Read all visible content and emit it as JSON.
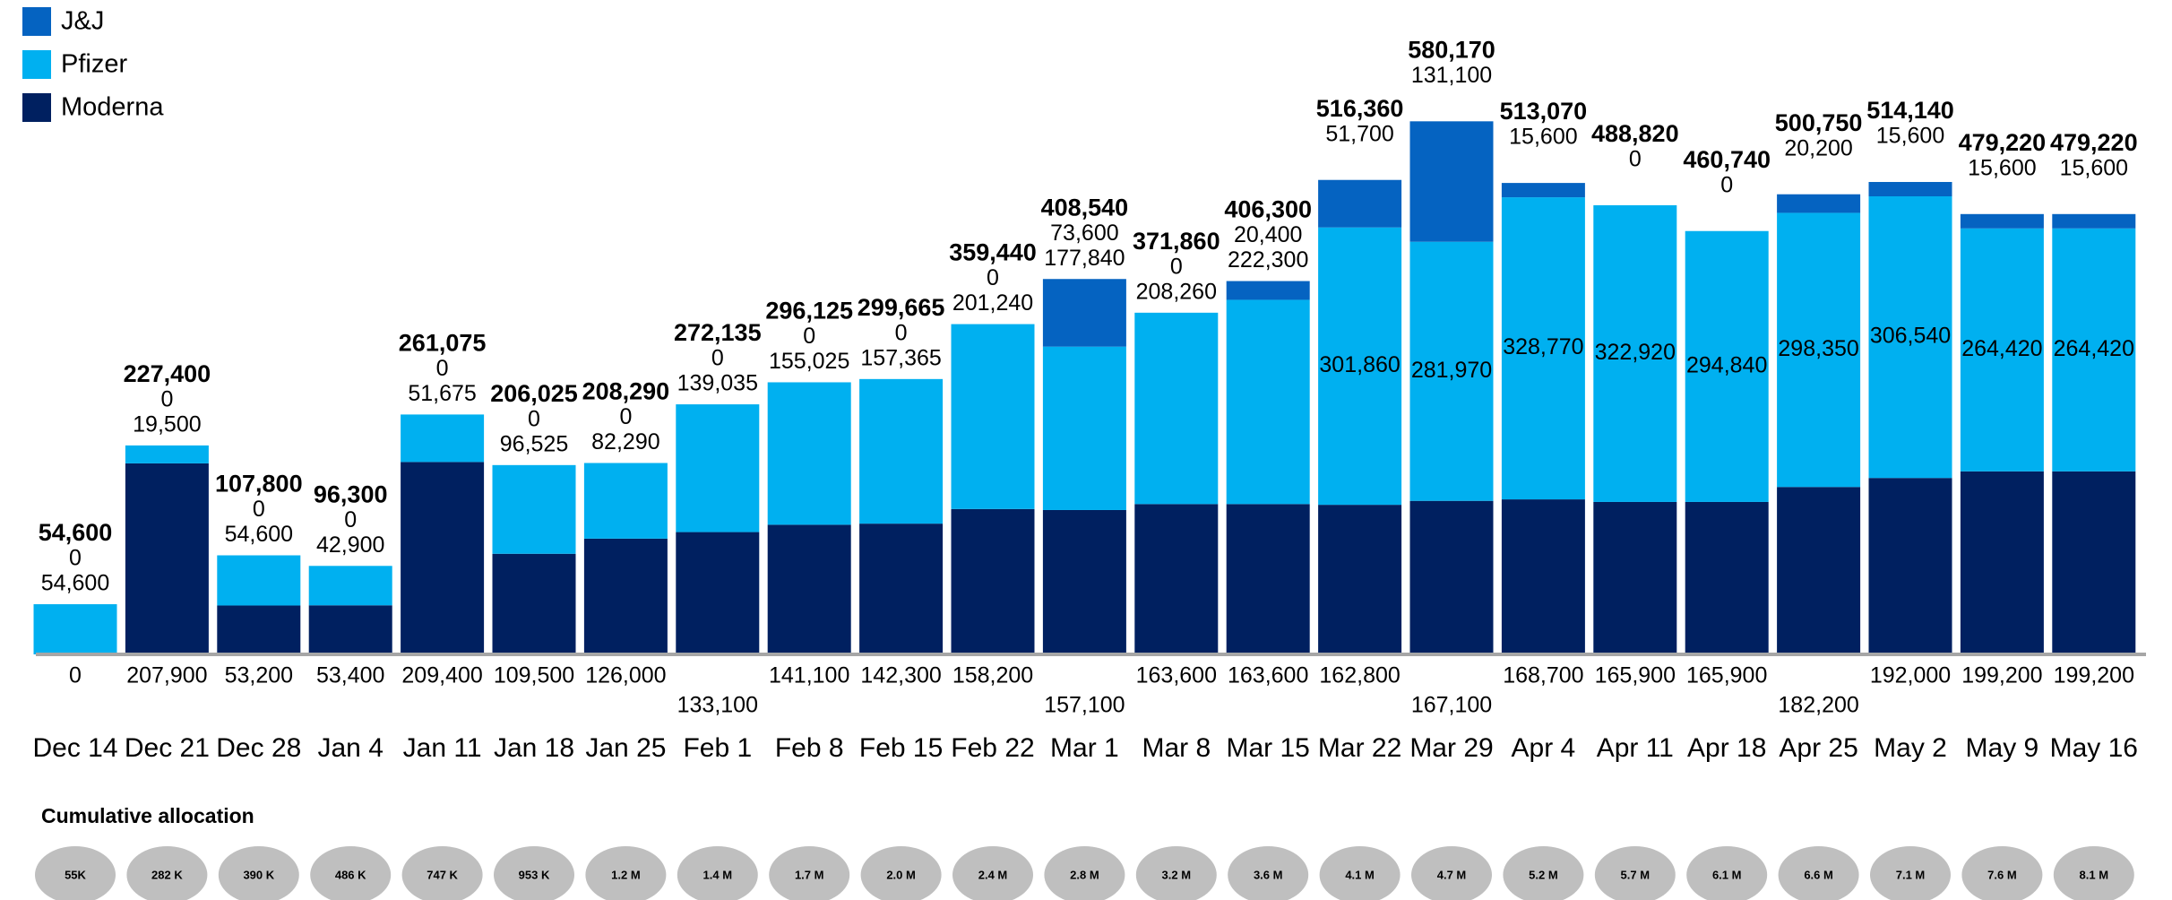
{
  "chart_data": {
    "type": "stacked_bar",
    "categories": [
      "Dec 14",
      "Dec 21",
      "Dec 28",
      "Jan 4",
      "Jan 11",
      "Jan 18",
      "Jan 25",
      "Feb 1",
      "Feb 8",
      "Feb 15",
      "Feb 22",
      "Mar 1",
      "Mar 8",
      "Mar 15",
      "Mar 22",
      "Mar 29",
      "Apr 4",
      "Apr 11",
      "Apr 18",
      "Apr 25",
      "May 2",
      "May 9",
      "May 16"
    ],
    "series": [
      {
        "name": "Moderna",
        "color": "#002060",
        "values": [
          0,
          207900,
          53200,
          53400,
          209400,
          109500,
          126000,
          133100,
          141100,
          142300,
          158200,
          157100,
          163600,
          163600,
          162800,
          167100,
          168700,
          165900,
          165900,
          182200,
          192000,
          199200,
          199200
        ],
        "value_labels": [
          "0",
          "207,900",
          "53,200",
          "53,400",
          "209,400",
          "109,500",
          "126,000",
          "133,100",
          "141,100",
          "142,300",
          "158,200",
          "157,100",
          "163,600",
          "163,600",
          "162,800",
          "167,100",
          "168,700",
          "165,900",
          "165,900",
          "182,200",
          "192,000",
          "199,200",
          "199,200"
        ]
      },
      {
        "name": "Pfizer",
        "color": "#00b0f0",
        "values": [
          54600,
          19500,
          54600,
          42900,
          51675,
          96525,
          82290,
          139035,
          155025,
          157365,
          201240,
          177840,
          208260,
          222300,
          301860,
          281970,
          328770,
          322920,
          294840,
          298350,
          306540,
          264420,
          264420
        ],
        "value_labels": [
          "54,600",
          "19,500",
          "54,600",
          "42,900",
          "51,675",
          "96,525",
          "82,290",
          "139,035",
          "155,025",
          "157,365",
          "201,240",
          "177,840",
          "208,260",
          "222,300",
          "301,860",
          "281,970",
          "328,770",
          "322,920",
          "294,840",
          "298,350",
          "306,540",
          "264,420",
          "264,420"
        ]
      },
      {
        "name": "J&J",
        "color": "#0563c1",
        "values": [
          0,
          0,
          0,
          0,
          0,
          0,
          0,
          0,
          0,
          0,
          0,
          73600,
          0,
          20400,
          51700,
          131100,
          15600,
          0,
          0,
          20200,
          15600,
          15600,
          15600
        ],
        "value_labels": [
          "0",
          "0",
          "0",
          "0",
          "0",
          "0",
          "0",
          "0",
          "0",
          "0",
          "0",
          "73,600",
          "0",
          "20,400",
          "51,700",
          "131,100",
          "15,600",
          "0",
          "0",
          "20,200",
          "15,600",
          "15,600",
          "15,600"
        ]
      }
    ],
    "totals": {
      "values": [
        54600,
        227400,
        107800,
        96300,
        261075,
        206025,
        208290,
        272135,
        296125,
        299665,
        359440,
        408540,
        371860,
        406300,
        516360,
        580170,
        513070,
        488820,
        460740,
        500750,
        514140,
        479220,
        479220
      ],
      "value_labels": [
        "54,600",
        "227,400",
        "107,800",
        "96,300",
        "261,075",
        "206,025",
        "208,290",
        "272,135",
        "296,125",
        "299,665",
        "359,440",
        "408,540",
        "371,860",
        "406,300",
        "516,360",
        "580,170",
        "513,070",
        "488,820",
        "460,740",
        "500,750",
        "514,140",
        "479,220",
        "479,220"
      ]
    },
    "cumulative_title": "Cumulative allocation",
    "cumulative_labels": [
      "55K",
      "282 K",
      "390 K",
      "486 K",
      "747 K",
      "953 K",
      "1.2 M",
      "1.4 M",
      "1.7 M",
      "2.0 M",
      "2.4 M",
      "2.8 M",
      "3.2 M",
      "3.6 M",
      "4.1 M",
      "4.7 M",
      "5.2 M",
      "5.7 M",
      "6.1 M",
      "6.6 M",
      "7.1 M",
      "7.6 M",
      "8.1 M"
    ],
    "ylim": [
      0,
      600000
    ]
  }
}
